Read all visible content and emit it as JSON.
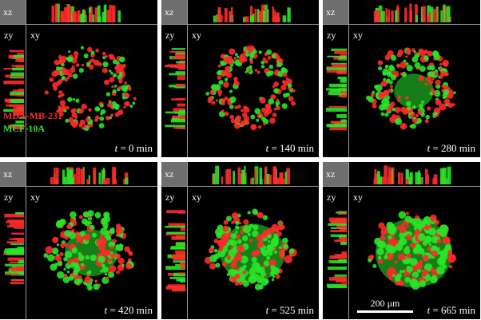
{
  "colors": {
    "red_channel": "#ff2a2a",
    "green_channel": "#28e628",
    "background": "#000000",
    "corner": "#6e6e6e"
  },
  "legend": {
    "red_label": "MDA-MB-231",
    "green_label": "MCF-10A"
  },
  "view_labels": {
    "xz": "xz",
    "zy": "zy",
    "xy": "xy"
  },
  "scale_bar": {
    "label": "200 μm"
  },
  "time_prefix": "t",
  "panels": [
    {
      "time": "= 0 min"
    },
    {
      "time": "= 140 min"
    },
    {
      "time": "= 280 min"
    },
    {
      "time": "= 420 min"
    },
    {
      "time": "= 525 min"
    },
    {
      "time": "= 665 min"
    }
  ]
}
